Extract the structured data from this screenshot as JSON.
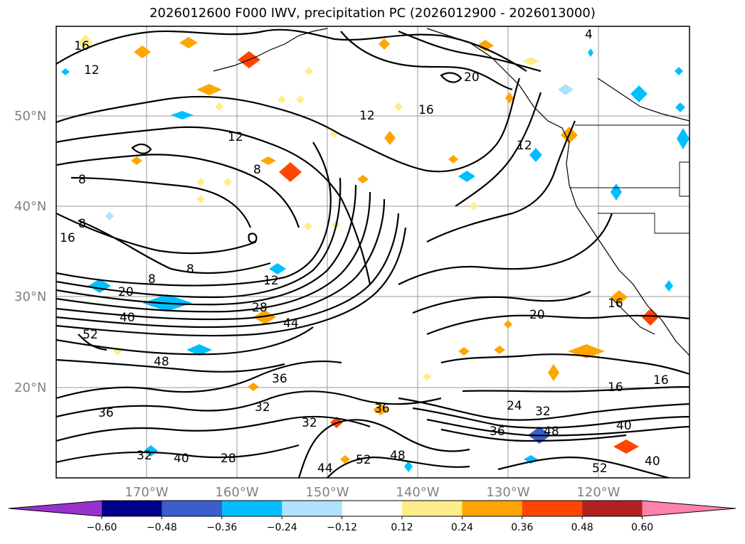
{
  "title": "2026012600 F000 IWV, precipitation PC (2026012900 - 2026013000)",
  "lat_labels": [
    "50°N",
    "40°N",
    "30°N",
    "20°N"
  ],
  "lon_labels": [
    "170°W",
    "160°W",
    "150°W",
    "140°W",
    "130°W",
    "120°W"
  ],
  "contour_labels": [
    "16",
    "12",
    "12",
    "16",
    "20",
    "4",
    "12",
    "8",
    "8",
    "8",
    "16",
    "8",
    "8",
    "12",
    "12",
    "20",
    "28",
    "40",
    "44",
    "52",
    "48",
    "36",
    "36",
    "32",
    "32",
    "36",
    "28",
    "40",
    "32",
    "44",
    "52",
    "48",
    "24",
    "32",
    "36",
    "48",
    "40",
    "20",
    "16",
    "16",
    "16",
    "52",
    "40"
  ],
  "colorbar": {
    "ticks": [
      "−0.60",
      "−0.48",
      "−0.36",
      "−0.24",
      "−0.12",
      "0.12",
      "0.24",
      "0.36",
      "0.48",
      "0.60"
    ],
    "colors": [
      "#9932cc",
      "#00008b",
      "#3a5fcd",
      "#00bfff",
      "#b0e2ff",
      "#ffffff",
      "#ffec8b",
      "#ffa500",
      "#ff4500",
      "#b22222",
      "#ff82ab"
    ]
  }
}
